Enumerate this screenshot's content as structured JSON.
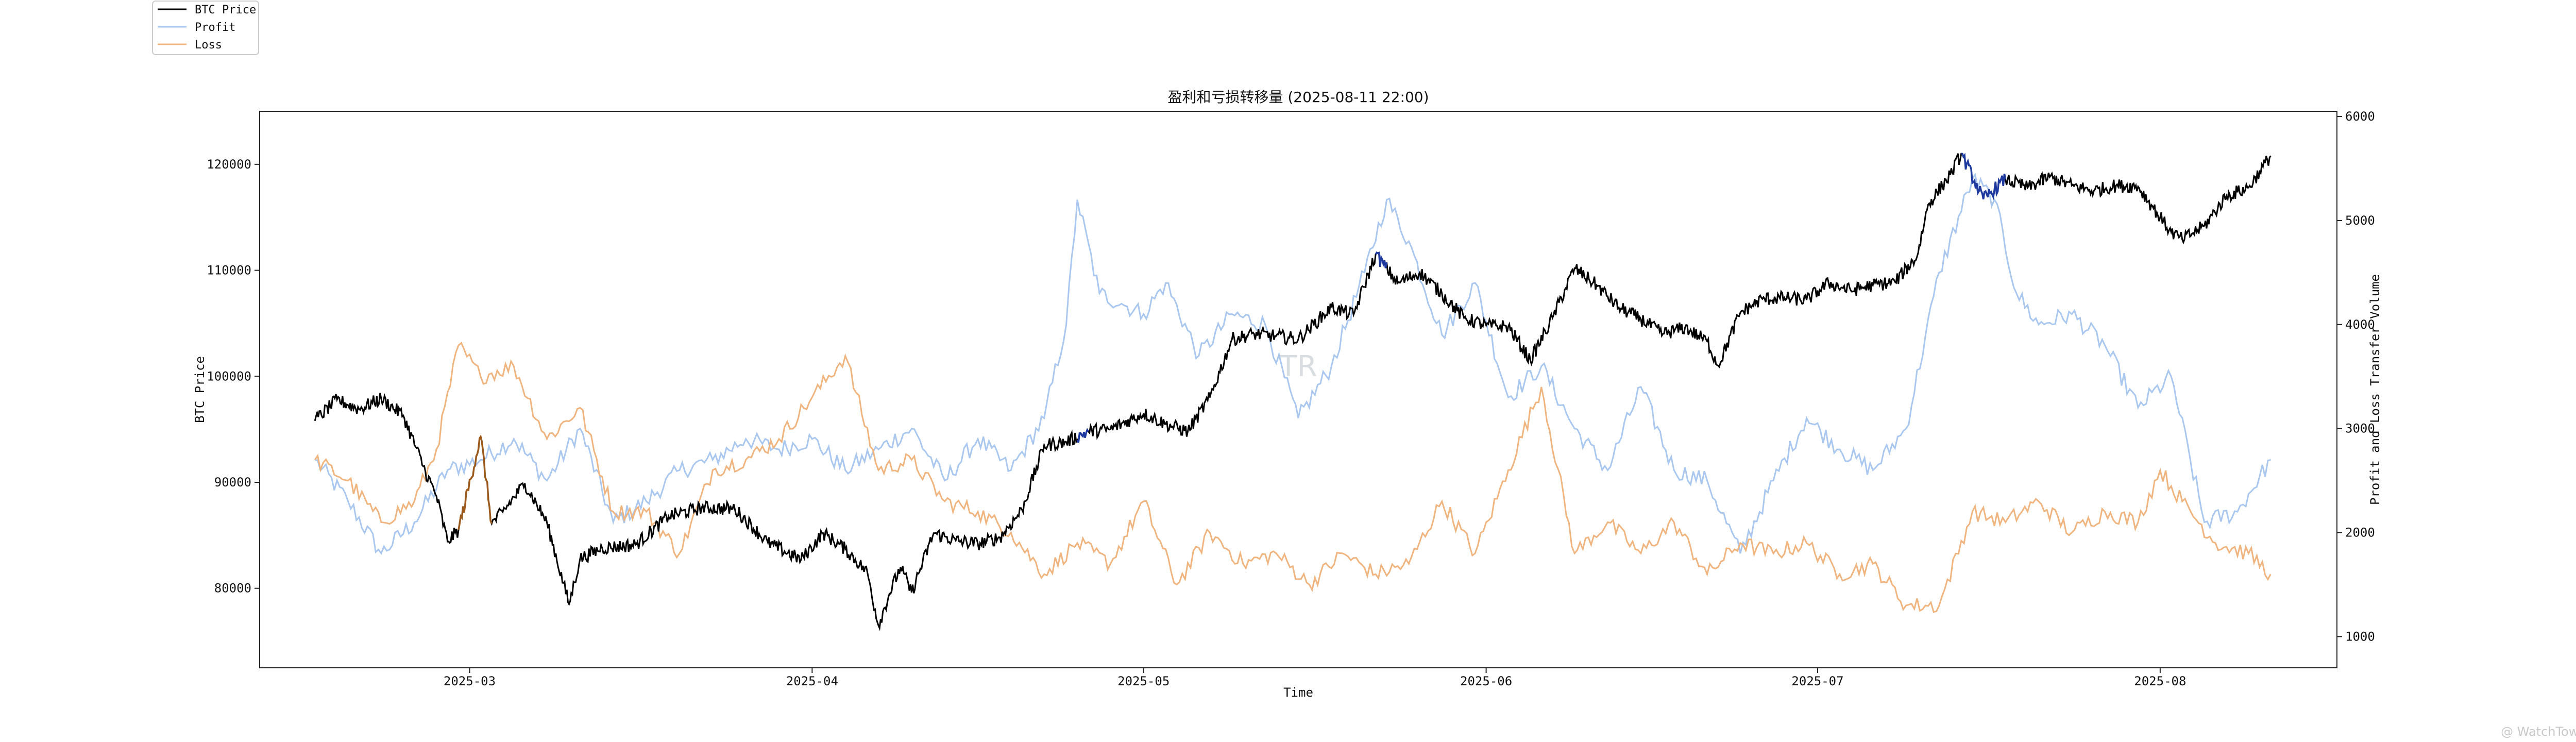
{
  "chart_data": {
    "type": "line",
    "title": "盈利和亏损转移量 (2025-08-11 22:00)",
    "xlabel": "Time",
    "ylabel_left": "BTC Price",
    "ylabel_right": "Profit and Loss Transfer Volume",
    "x_ticks": [
      "2025-03",
      "2025-04",
      "2025-05",
      "2025-06",
      "2025-07",
      "2025-08"
    ],
    "x_range": [
      "2025-02-10",
      "2025-08-17"
    ],
    "y_left_ticks": [
      80000,
      90000,
      100000,
      110000,
      120000
    ],
    "y_left_range": [
      72500,
      125000
    ],
    "y_right_ticks": [
      1000,
      2000,
      3000,
      4000,
      5000,
      6000
    ],
    "y_right_range": [
      700,
      6050
    ],
    "grid": false,
    "legend_position": "top-left, outside plot",
    "colors": {
      "price": "#000000",
      "profit": "#a9c7ef",
      "loss": "#f0b47f",
      "price_profit_highlight": "#1f3a9e",
      "price_loss_highlight": "#9b5a1c"
    },
    "series": [
      {
        "name": "BTC Price",
        "axis": "left",
        "x": [
          "2025-02-15",
          "2025-02-17",
          "2025-02-19",
          "2025-02-21",
          "2025-02-23",
          "2025-02-25",
          "2025-02-26",
          "2025-02-27",
          "2025-02-28",
          "2025-03-02",
          "2025-03-03",
          "2025-03-04",
          "2025-03-06",
          "2025-03-08",
          "2025-03-10",
          "2025-03-11",
          "2025-03-13",
          "2025-03-16",
          "2025-03-19",
          "2025-03-22",
          "2025-03-25",
          "2025-03-28",
          "2025-03-31",
          "2025-04-02",
          "2025-04-04",
          "2025-04-06",
          "2025-04-07",
          "2025-04-08",
          "2025-04-09",
          "2025-04-10",
          "2025-04-12",
          "2025-04-14",
          "2025-04-16",
          "2025-04-18",
          "2025-04-20",
          "2025-04-22",
          "2025-04-24",
          "2025-04-26",
          "2025-04-28",
          "2025-05-01",
          "2025-05-03",
          "2025-05-05",
          "2025-05-07",
          "2025-05-09",
          "2025-05-11",
          "2025-05-13",
          "2025-05-15",
          "2025-05-18",
          "2025-05-20",
          "2025-05-22",
          "2025-05-24",
          "2025-05-26",
          "2025-05-28",
          "2025-05-30",
          "2025-06-01",
          "2025-06-03",
          "2025-06-05",
          "2025-06-07",
          "2025-06-09",
          "2025-06-11",
          "2025-06-13",
          "2025-06-15",
          "2025-06-17",
          "2025-06-19",
          "2025-06-21",
          "2025-06-22",
          "2025-06-24",
          "2025-06-26",
          "2025-06-28",
          "2025-06-30",
          "2025-07-02",
          "2025-07-04",
          "2025-07-06",
          "2025-07-08",
          "2025-07-10",
          "2025-07-11",
          "2025-07-13",
          "2025-07-14",
          "2025-07-16",
          "2025-07-18",
          "2025-07-20",
          "2025-07-22",
          "2025-07-24",
          "2025-07-26",
          "2025-07-28",
          "2025-07-30",
          "2025-08-01",
          "2025-08-02",
          "2025-08-03",
          "2025-08-05",
          "2025-08-07",
          "2025-08-09",
          "2025-08-10",
          "2025-08-11"
        ],
        "y": [
          95800,
          97800,
          96900,
          97900,
          96300,
          91000,
          88700,
          84400,
          85500,
          94300,
          86100,
          87200,
          89900,
          86200,
          78500,
          82800,
          83800,
          84100,
          86800,
          87600,
          87500,
          84300,
          82700,
          85200,
          83700,
          81500,
          76500,
          79500,
          82000,
          79600,
          85200,
          84500,
          84200,
          84800,
          87400,
          93500,
          93800,
          94800,
          95000,
          96500,
          95500,
          94800,
          98000,
          103500,
          104000,
          103800,
          103500,
          106500,
          105800,
          111500,
          108800,
          109800,
          107800,
          105500,
          104800,
          104700,
          101500,
          105500,
          110200,
          108600,
          106500,
          105400,
          104000,
          104600,
          103300,
          101000,
          106000,
          107300,
          107400,
          107200,
          108800,
          108100,
          108600,
          108900,
          111300,
          116200,
          119000,
          121000,
          116700,
          118600,
          117800,
          118800,
          118000,
          117500,
          118000,
          117900,
          115000,
          113600,
          112900,
          114200,
          117000,
          117800,
          119300,
          120800
        ],
        "highlight_profit_ranges": [
          [
            "2025-04-25",
            "2025-04-26"
          ],
          [
            "2025-05-22",
            "2025-05-23"
          ],
          [
            "2025-07-14",
            "2025-07-18"
          ]
        ],
        "highlight_loss_ranges": [
          [
            "2025-02-28",
            "2025-03-03"
          ]
        ]
      },
      {
        "name": "Profit",
        "axis": "right",
        "x": [
          "2025-02-15",
          "2025-02-18",
          "2025-02-21",
          "2025-02-24",
          "2025-02-27",
          "2025-03-02",
          "2025-03-05",
          "2025-03-08",
          "2025-03-11",
          "2025-03-14",
          "2025-03-17",
          "2025-03-20",
          "2025-03-23",
          "2025-03-26",
          "2025-03-29",
          "2025-04-01",
          "2025-04-04",
          "2025-04-07",
          "2025-04-10",
          "2025-04-13",
          "2025-04-16",
          "2025-04-19",
          "2025-04-22",
          "2025-04-24",
          "2025-04-25",
          "2025-04-27",
          "2025-04-29",
          "2025-05-01",
          "2025-05-03",
          "2025-05-06",
          "2025-05-09",
          "2025-05-12",
          "2025-05-15",
          "2025-05-18",
          "2025-05-21",
          "2025-05-23",
          "2025-05-25",
          "2025-05-28",
          "2025-05-31",
          "2025-06-03",
          "2025-06-06",
          "2025-06-09",
          "2025-06-12",
          "2025-06-15",
          "2025-06-18",
          "2025-06-21",
          "2025-06-24",
          "2025-06-27",
          "2025-06-30",
          "2025-07-03",
          "2025-07-06",
          "2025-07-09",
          "2025-07-12",
          "2025-07-15",
          "2025-07-17",
          "2025-07-19",
          "2025-07-21",
          "2025-07-24",
          "2025-07-27",
          "2025-07-30",
          "2025-08-02",
          "2025-08-05",
          "2025-08-08",
          "2025-08-11"
        ],
        "y": [
          2700,
          2300,
          1800,
          2100,
          2600,
          2700,
          2900,
          2500,
          3000,
          2100,
          2300,
          2600,
          2700,
          2900,
          2800,
          2900,
          2600,
          2800,
          3000,
          2500,
          2900,
          2600,
          3100,
          4000,
          5200,
          4300,
          4200,
          4100,
          4400,
          3700,
          4100,
          4000,
          3100,
          3600,
          4500,
          5200,
          4800,
          3900,
          4400,
          3300,
          3600,
          3000,
          2600,
          3400,
          2600,
          2500,
          1800,
          2500,
          3100,
          2800,
          2600,
          3000,
          4500,
          5400,
          5200,
          4300,
          4000,
          4100,
          3800,
          3200,
          3500,
          2100,
          2200,
          2700
        ]
      },
      {
        "name": "Loss",
        "axis": "right",
        "x": [
          "2025-02-15",
          "2025-02-18",
          "2025-02-21",
          "2025-02-24",
          "2025-02-26",
          "2025-02-28",
          "2025-03-02",
          "2025-03-05",
          "2025-03-08",
          "2025-03-11",
          "2025-03-14",
          "2025-03-17",
          "2025-03-20",
          "2025-03-23",
          "2025-03-26",
          "2025-03-29",
          "2025-04-01",
          "2025-04-04",
          "2025-04-07",
          "2025-04-10",
          "2025-04-13",
          "2025-04-16",
          "2025-04-19",
          "2025-04-22",
          "2025-04-25",
          "2025-04-28",
          "2025-05-01",
          "2025-05-04",
          "2025-05-07",
          "2025-05-10",
          "2025-05-13",
          "2025-05-16",
          "2025-05-19",
          "2025-05-22",
          "2025-05-25",
          "2025-05-28",
          "2025-05-31",
          "2025-06-03",
          "2025-06-06",
          "2025-06-09",
          "2025-06-12",
          "2025-06-15",
          "2025-06-18",
          "2025-06-21",
          "2025-06-24",
          "2025-06-27",
          "2025-06-30",
          "2025-07-03",
          "2025-07-06",
          "2025-07-09",
          "2025-07-12",
          "2025-07-15",
          "2025-07-18",
          "2025-07-21",
          "2025-07-24",
          "2025-07-27",
          "2025-07-30",
          "2025-08-01",
          "2025-08-03",
          "2025-08-06",
          "2025-08-09",
          "2025-08-11"
        ],
        "y": [
          2700,
          2500,
          2100,
          2300,
          2800,
          3800,
          3500,
          3600,
          2900,
          3200,
          2200,
          2200,
          1800,
          2600,
          2700,
          2900,
          3300,
          3700,
          2600,
          2700,
          2300,
          2200,
          2000,
          1600,
          1900,
          1700,
          2300,
          1500,
          2000,
          1700,
          1800,
          1500,
          1800,
          1600,
          1700,
          2300,
          1800,
          2600,
          3400,
          1800,
          2100,
          1800,
          2100,
          1600,
          1900,
          1800,
          1900,
          1600,
          1700,
          1300,
          1300,
          2200,
          2100,
          2300,
          2000,
          2200,
          2100,
          2600,
          2300,
          1900,
          1800,
          1600
        ]
      }
    ]
  },
  "watermark": "TR",
  "corner_watermark": "@ WatchTower"
}
